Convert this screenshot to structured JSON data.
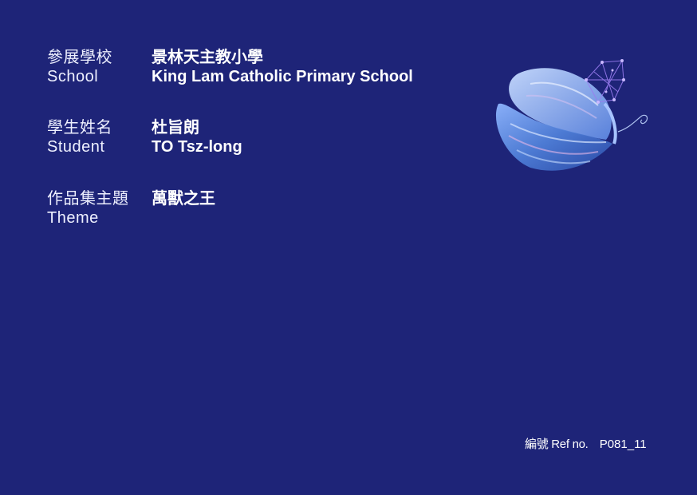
{
  "school": {
    "label_zh": "參展學校",
    "label_en": "School",
    "value_zh": "景林天主教小學",
    "value_en": "King Lam Catholic Primary School"
  },
  "student": {
    "label_zh": "學生姓名",
    "label_en": "Student",
    "value_zh": "杜旨朗",
    "value_en": "TO Tsz-long"
  },
  "theme": {
    "label_zh": "作品集主題",
    "label_en": "Theme",
    "value_zh": "萬獸之王"
  },
  "reference": {
    "label": "編號 Ref no.",
    "value": "P081_11"
  },
  "colors": {
    "background": "#1e2478",
    "text": "#ffffff",
    "butterfly_blue": "#5a8fe0",
    "butterfly_light": "#b8d4ff",
    "wire_purple": "#9a7cf0"
  },
  "icons": {
    "butterfly": "butterfly-icon"
  }
}
